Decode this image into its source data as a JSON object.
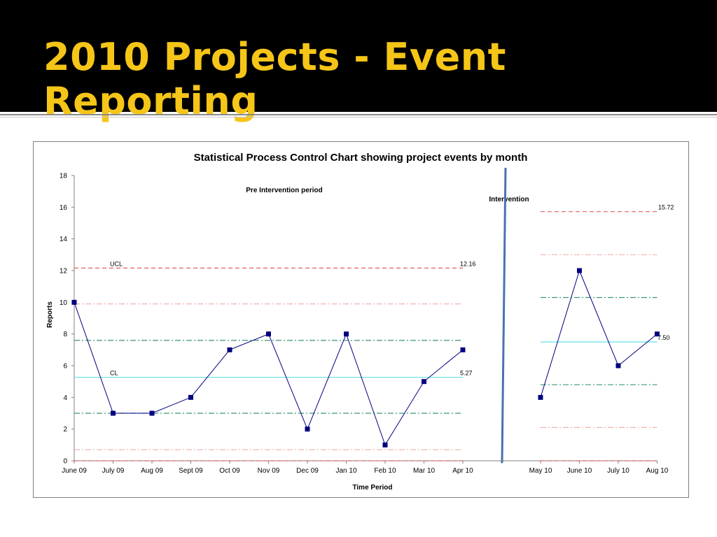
{
  "slide": {
    "title": "2010 Projects -  Event Reporting",
    "title_color": "#f5c518",
    "banner_color": "#000000"
  },
  "chart_data": {
    "type": "line",
    "title": "Statistical Process Control Chart showing project events by month",
    "xlabel": "Time Period",
    "ylabel": "Reports",
    "ylim": [
      0,
      18
    ],
    "yticks": [
      0,
      2,
      4,
      6,
      8,
      10,
      12,
      14,
      16,
      18
    ],
    "grid": false,
    "categories": [
      "June 09",
      "July 09",
      "Aug 09",
      "Sept 09",
      "Oct 09",
      "Nov 09",
      "Dec 09",
      "Jan 10",
      "Feb 10",
      "Mar 10",
      "Apr 10",
      "",
      "May 10",
      "June 10",
      "July 10",
      "Aug 10"
    ],
    "series": [
      {
        "values": [
          10,
          3,
          3,
          4,
          7,
          8,
          2,
          8,
          1,
          5,
          7,
          null,
          4,
          12,
          6,
          8
        ],
        "color": "#000080"
      }
    ],
    "periods": [
      {
        "label": "Pre Intervention period",
        "cl": 5.27,
        "ucl": 12.16,
        "lcl": 0,
        "upper2": 9.9,
        "upper1": 7.6,
        "lower1": 3.0,
        "lower2": 0.7,
        "cl_value_label": "5.27",
        "ucl_value_label": "12.16"
      },
      {
        "label": "Intervention",
        "cl": 7.5,
        "ucl": 15.72,
        "lcl": 0,
        "upper2": 13.0,
        "upper1": 10.3,
        "lower1": 4.8,
        "lower2": 2.1,
        "cl_value_label": "7.50",
        "ucl_value_label": "15.72"
      }
    ],
    "annotations": {
      "ucl": "UCL",
      "cl": "CL"
    },
    "colors": {
      "ucl": "#e06060",
      "sigma2": "#f0b4b4",
      "sigma1": "#3c9678",
      "cl": "#66e0e6",
      "divider": "#4a72b0"
    }
  }
}
